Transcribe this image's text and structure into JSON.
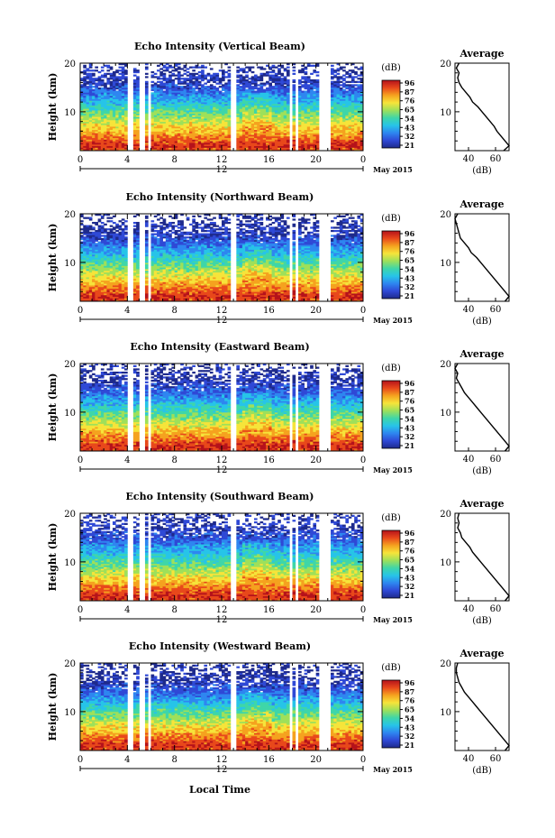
{
  "figure": {
    "xlabel": "Local Time",
    "date_label": "May 2015",
    "day_label": "12",
    "time_ticks": [
      "0",
      "4",
      "8",
      "12",
      "16",
      "20",
      "0"
    ],
    "height_ticks": [
      "20",
      "10"
    ],
    "colorbar_unit": "(dB)",
    "colorbar_ticks": [
      "96",
      "87",
      "76",
      "65",
      "54",
      "43",
      "32",
      "21"
    ],
    "average_title": "Average",
    "average_ticks": [
      "40",
      "60"
    ],
    "average_unit": "(dB)",
    "ylabel": "Height (km)",
    "colormap": [
      "#1e2a8c",
      "#2f49d6",
      "#2e86f0",
      "#27c4e8",
      "#3fd6a8",
      "#9ee05a",
      "#f6e43a",
      "#f5a21f",
      "#e8481b",
      "#b5121b"
    ]
  },
  "chart_data": [
    {
      "type": "heatmap",
      "title": "Echo Intensity (Vertical Beam)",
      "xlabel": "",
      "ylabel": "Height (km)",
      "xlim": [
        0,
        24
      ],
      "ylim": [
        2,
        20
      ],
      "color_range_db": [
        21,
        96
      ],
      "data_gaps_hours": [
        [
          4.1,
          4.5
        ],
        [
          5.0,
          5.4
        ],
        [
          5.8,
          6.1
        ],
        [
          12.7,
          13.2
        ],
        [
          17.7,
          17.9
        ],
        [
          18.3,
          18.5
        ],
        [
          20.3,
          21.3
        ]
      ],
      "profile": {
        "title": "Average",
        "xlabel": "(dB)",
        "xlim": [
          30,
          70
        ],
        "ylim": [
          2,
          20
        ],
        "heights_km": [
          20,
          19,
          18,
          17,
          16,
          15,
          14,
          13,
          12,
          11,
          10,
          9,
          8,
          7,
          6,
          5,
          4,
          3,
          2
        ],
        "db": [
          33,
          31,
          33,
          32,
          33,
          35,
          38,
          41,
          43,
          47,
          50,
          53,
          56,
          59,
          61,
          64,
          67,
          70,
          66
        ]
      }
    },
    {
      "type": "heatmap",
      "title": "Echo Intensity (Northward Beam)",
      "xlabel": "",
      "ylabel": "Height (km)",
      "xlim": [
        0,
        24
      ],
      "ylim": [
        2,
        20
      ],
      "color_range_db": [
        21,
        96
      ],
      "data_gaps_hours": [
        [
          4.1,
          4.5
        ],
        [
          5.0,
          5.4
        ],
        [
          5.8,
          6.1
        ],
        [
          12.7,
          13.2
        ],
        [
          17.7,
          17.9
        ],
        [
          18.3,
          18.5
        ],
        [
          20.3,
          21.3
        ]
      ],
      "profile": {
        "title": "Average",
        "xlabel": "(dB)",
        "xlim": [
          30,
          70
        ],
        "ylim": [
          2,
          20
        ],
        "heights_km": [
          20,
          19,
          18,
          17,
          16,
          15,
          14,
          13,
          12,
          11,
          10,
          9,
          8,
          7,
          6,
          5,
          4,
          3,
          2
        ],
        "db": [
          32,
          30,
          31,
          32,
          33,
          34,
          37,
          40,
          42,
          46,
          49,
          52,
          55,
          58,
          61,
          64,
          67,
          70,
          67
        ]
      }
    },
    {
      "type": "heatmap",
      "title": "Echo Intensity (Eastward Beam)",
      "xlabel": "",
      "ylabel": "Height (km)",
      "xlim": [
        0,
        24
      ],
      "ylim": [
        2,
        20
      ],
      "color_range_db": [
        21,
        96
      ],
      "data_gaps_hours": [
        [
          4.1,
          4.5
        ],
        [
          5.0,
          5.4
        ],
        [
          5.8,
          6.1
        ],
        [
          12.7,
          13.2
        ],
        [
          17.7,
          17.9
        ],
        [
          18.3,
          18.5
        ],
        [
          20.3,
          21.3
        ]
      ],
      "profile": {
        "title": "Average",
        "xlabel": "(dB)",
        "xlim": [
          30,
          70
        ],
        "ylim": [
          2,
          20
        ],
        "heights_km": [
          20,
          19,
          18,
          17,
          16,
          15,
          14,
          13,
          12,
          11,
          10,
          9,
          8,
          7,
          6,
          5,
          4,
          3,
          2
        ],
        "db": [
          32,
          30,
          32,
          31,
          33,
          35,
          37,
          40,
          43,
          46,
          49,
          52,
          55,
          58,
          61,
          64,
          67,
          70,
          67
        ]
      }
    },
    {
      "type": "heatmap",
      "title": "Echo Intensity (Southward Beam)",
      "xlabel": "",
      "ylabel": "Height (km)",
      "xlim": [
        0,
        24
      ],
      "ylim": [
        2,
        20
      ],
      "color_range_db": [
        21,
        96
      ],
      "data_gaps_hours": [
        [
          4.1,
          4.5
        ],
        [
          5.0,
          5.4
        ],
        [
          5.8,
          6.1
        ],
        [
          12.7,
          13.2
        ],
        [
          17.7,
          17.9
        ],
        [
          18.3,
          18.5
        ],
        [
          20.3,
          21.3
        ]
      ],
      "profile": {
        "title": "Average",
        "xlabel": "(dB)",
        "xlim": [
          30,
          70
        ],
        "ylim": [
          2,
          20
        ],
        "heights_km": [
          20,
          19,
          18,
          17,
          16,
          15,
          14,
          13,
          12,
          11,
          10,
          9,
          8,
          7,
          6,
          5,
          4,
          3,
          2
        ],
        "db": [
          33,
          32,
          33,
          32,
          34,
          35,
          38,
          41,
          43,
          46,
          49,
          52,
          55,
          58,
          61,
          64,
          67,
          70,
          67
        ]
      }
    },
    {
      "type": "heatmap",
      "title": "Echo Intensity (Westward Beam)",
      "xlabel": "Local Time",
      "ylabel": "Height (km)",
      "xlim": [
        0,
        24
      ],
      "ylim": [
        2,
        20
      ],
      "color_range_db": [
        21,
        96
      ],
      "data_gaps_hours": [
        [
          4.1,
          4.5
        ],
        [
          5.0,
          5.4
        ],
        [
          5.8,
          6.1
        ],
        [
          12.7,
          13.2
        ],
        [
          17.7,
          17.9
        ],
        [
          18.3,
          18.5
        ],
        [
          20.3,
          21.3
        ]
      ],
      "profile": {
        "title": "Average",
        "xlabel": "(dB)",
        "xlim": [
          30,
          70
        ],
        "ylim": [
          2,
          20
        ],
        "heights_km": [
          20,
          19,
          18,
          17,
          16,
          15,
          14,
          13,
          12,
          11,
          10,
          9,
          8,
          7,
          6,
          5,
          4,
          3,
          2
        ],
        "db": [
          32,
          31,
          31,
          32,
          33,
          35,
          37,
          40,
          43,
          46,
          49,
          52,
          55,
          58,
          61,
          64,
          67,
          70,
          67
        ]
      }
    }
  ]
}
